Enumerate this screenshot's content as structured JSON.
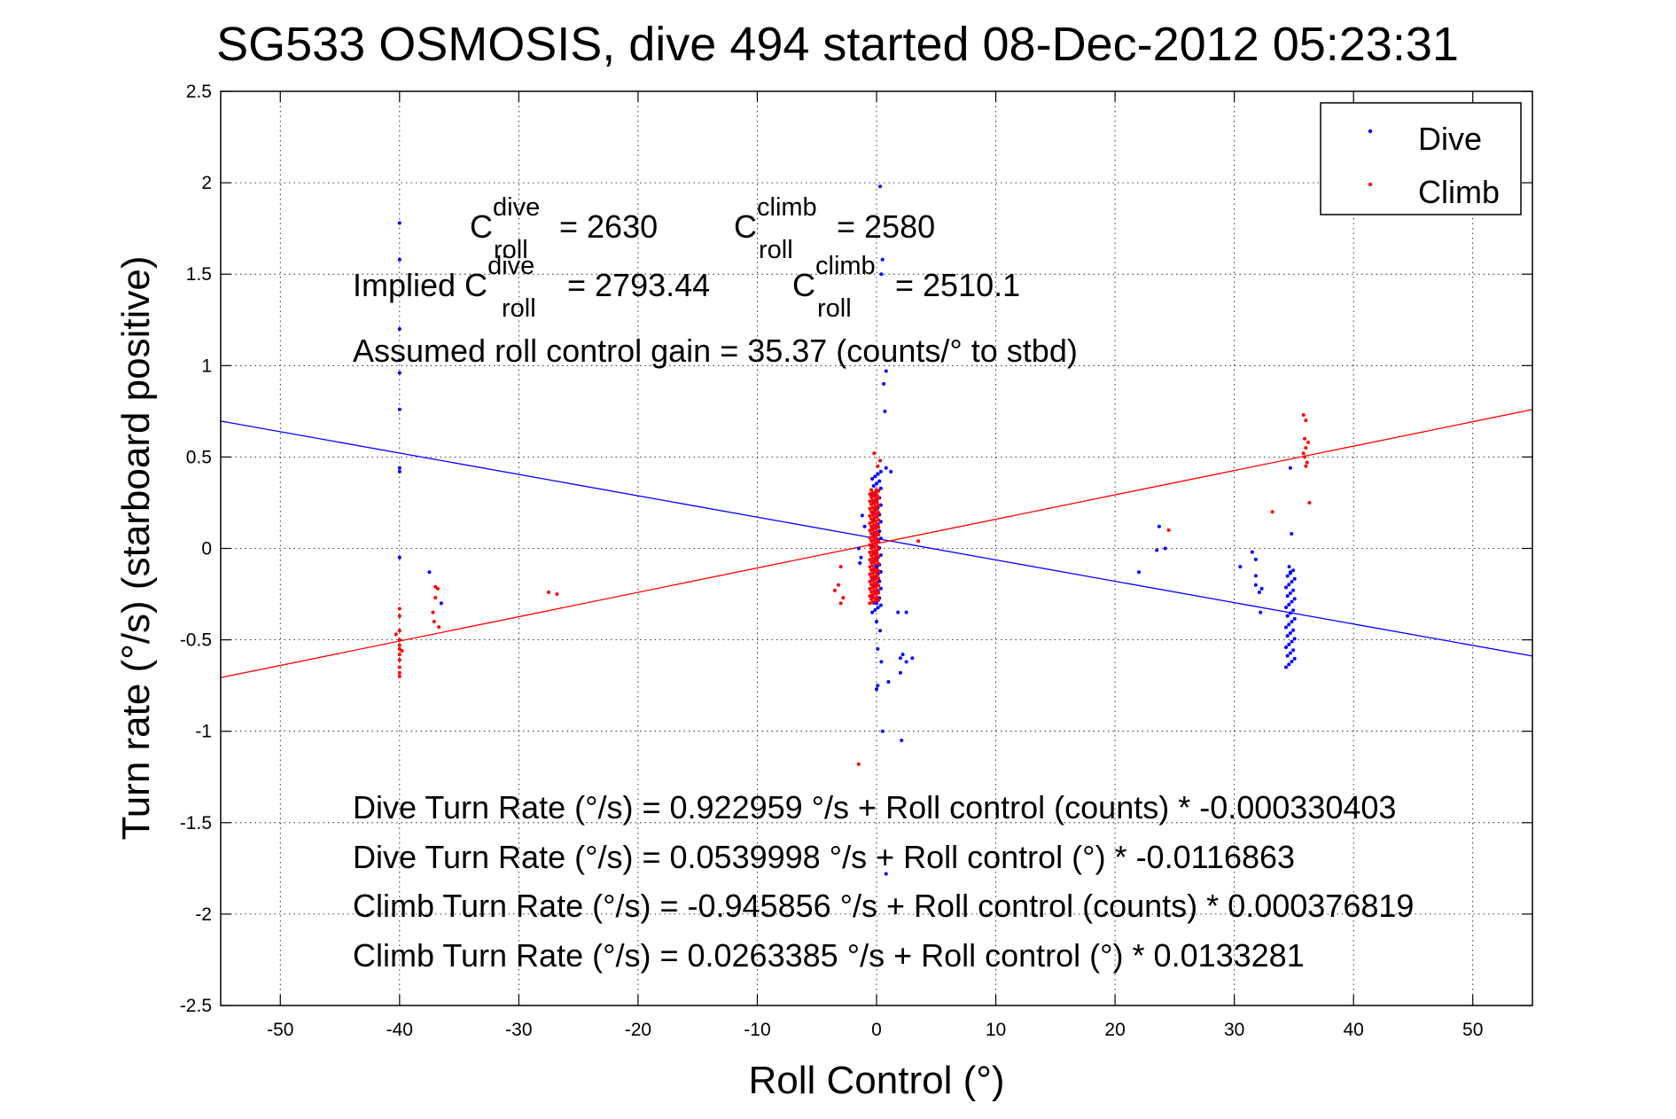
{
  "chart_data": {
    "type": "scatter",
    "title": "SG533 OSMOSIS, dive 494 started 08-Dec-2012 05:23:31",
    "xlabel": "Roll Control (°)",
    "ylabel": "Turn rate (°/s)  (starboard positive)",
    "xlim": [
      -55,
      55
    ],
    "ylim": [
      -2.5,
      2.5
    ],
    "xticks": [
      -50,
      -40,
      -30,
      -20,
      -10,
      0,
      10,
      20,
      30,
      40,
      50
    ],
    "yticks": [
      -2.5,
      -2,
      -1.5,
      -1,
      -0.5,
      0,
      0.5,
      1,
      1.5,
      2,
      2.5
    ],
    "grid": true,
    "legend_position": "top-right",
    "series": [
      {
        "name": "Dive",
        "color": "#0000ff",
        "marker": "dot",
        "points": [
          [
            -40,
            1.78
          ],
          [
            -40,
            1.58
          ],
          [
            -40,
            1.2
          ],
          [
            -40,
            1.03
          ],
          [
            -40,
            0.96
          ],
          [
            -40,
            0.76
          ],
          [
            -40,
            0.44
          ],
          [
            -40,
            0.42
          ],
          [
            -40,
            -0.05
          ],
          [
            -37.5,
            -0.13
          ],
          [
            -36.5,
            -0.3
          ],
          [
            0.3,
            1.98
          ],
          [
            0.5,
            1.58
          ],
          [
            0.4,
            1.5
          ],
          [
            0.8,
            0.97
          ],
          [
            0.6,
            0.9
          ],
          [
            0.7,
            0.75
          ],
          [
            0.8,
            0.44
          ],
          [
            1.2,
            0.42
          ],
          [
            -1.2,
            0.18
          ],
          [
            -1.0,
            0.12
          ],
          [
            -1.5,
            0.0
          ],
          [
            -1.3,
            -0.05
          ],
          [
            -1.4,
            -0.08
          ],
          [
            0,
            -0.1
          ],
          [
            0,
            -0.3
          ],
          [
            0,
            -0.4
          ],
          [
            0.3,
            -0.45
          ],
          [
            0.1,
            -0.55
          ],
          [
            0.4,
            -0.62
          ],
          [
            0.1,
            -0.75
          ],
          [
            0.0,
            -0.77
          ],
          [
            1.0,
            -0.73
          ],
          [
            2.0,
            -0.6
          ],
          [
            2.5,
            -0.62
          ],
          [
            3.0,
            -0.6
          ],
          [
            2.2,
            -0.58
          ],
          [
            2.0,
            -0.68
          ],
          [
            1.8,
            -0.35
          ],
          [
            2.5,
            -0.35
          ],
          [
            0.5,
            -1.0
          ],
          [
            2.1,
            -1.05
          ],
          [
            0.8,
            -1.78
          ],
          [
            22,
            -0.13
          ],
          [
            23.5,
            -0.01
          ],
          [
            23.7,
            0.12
          ],
          [
            24.2,
            0.0
          ],
          [
            30.5,
            -0.1
          ],
          [
            31.5,
            -0.02
          ],
          [
            31.8,
            -0.06
          ],
          [
            31.8,
            -0.2
          ],
          [
            32.1,
            -0.24
          ],
          [
            32.3,
            -0.22
          ],
          [
            32.2,
            -0.35
          ],
          [
            31.8,
            -0.15
          ],
          [
            34.7,
            0.44
          ],
          [
            34.8,
            0.08
          ],
          [
            34.6,
            -0.1
          ],
          [
            34.7,
            -0.13
          ]
        ]
      },
      {
        "name": "Climb",
        "color": "#ff0000",
        "marker": "dot",
        "points": [
          [
            -40,
            -0.33
          ],
          [
            -40,
            -0.37
          ],
          [
            -40,
            -0.45
          ],
          [
            -40,
            -0.5
          ],
          [
            -40,
            -0.53
          ],
          [
            -40,
            -0.55
          ],
          [
            -40,
            -0.58
          ],
          [
            -40,
            -0.61
          ],
          [
            -40,
            -0.65
          ],
          [
            -40,
            -0.68
          ],
          [
            -40,
            -0.7
          ],
          [
            -40.3,
            -0.47
          ],
          [
            -39.8,
            -0.56
          ],
          [
            -37,
            -0.21
          ],
          [
            -37,
            -0.27
          ],
          [
            -36.8,
            -0.22
          ],
          [
            -37.2,
            -0.35
          ],
          [
            -37.1,
            -0.4
          ],
          [
            -36.7,
            -0.43
          ],
          [
            -27.5,
            -0.24
          ],
          [
            -26.8,
            -0.25
          ],
          [
            -3.0,
            -0.1
          ],
          [
            -3.2,
            -0.2
          ],
          [
            -3.5,
            -0.23
          ],
          [
            -2.8,
            -0.27
          ],
          [
            -3.0,
            -0.3
          ],
          [
            -0.2,
            0.52
          ],
          [
            0.1,
            0.45
          ],
          [
            0.3,
            0.48
          ],
          [
            0.0,
            0.32
          ],
          [
            3.5,
            0.04
          ],
          [
            -1.5,
            -1.18
          ],
          [
            24.5,
            0.1
          ],
          [
            33.2,
            0.2
          ],
          [
            35.8,
            0.73
          ],
          [
            36.0,
            0.7
          ],
          [
            35.9,
            0.6
          ],
          [
            36.2,
            0.58
          ],
          [
            36.0,
            0.55
          ],
          [
            35.8,
            0.52
          ],
          [
            35.9,
            0.5
          ],
          [
            36.1,
            0.47
          ],
          [
            36.0,
            0.45
          ],
          [
            36.3,
            0.25
          ]
        ]
      }
    ],
    "vertical_bands": [
      {
        "series": "Dive",
        "x": 0.0,
        "y_from": -0.35,
        "y_to": 0.42,
        "count": 60
      },
      {
        "series": "Climb",
        "x": -0.2,
        "y_from": -0.3,
        "y_to": 0.32,
        "count": 110
      },
      {
        "series": "Dive",
        "x": 34.7,
        "y_from": -0.65,
        "y_to": -0.12,
        "count": 35
      }
    ],
    "fit_lines": [
      {
        "series": "Dive",
        "color": "#0000ff",
        "intercept": 0.0539998,
        "slope": -0.0116863
      },
      {
        "series": "Climb",
        "color": "#ff0000",
        "intercept": 0.0263385,
        "slope": 0.0133281
      }
    ],
    "annotations": {
      "c_dive_base": "C",
      "c_dive_sup": "dive",
      "c_dive_sub": "roll",
      "c_dive_value": "= 2630",
      "c_climb_base": "C",
      "c_climb_sup": "climb",
      "c_climb_sub": "roll",
      "c_climb_value": "= 2580",
      "implied_prefix": "Implied C",
      "implied_dive_sup": "dive",
      "implied_dive_sub": "roll",
      "implied_dive_value": "= 2793.44",
      "implied_climb_base": "C",
      "implied_climb_sup": "climb",
      "implied_climb_sub": "roll",
      "implied_climb_value": "= 2510.1",
      "gain": "Assumed roll control gain = 35.37 (counts/° to stbd)",
      "eq1": "Dive Turn Rate (°/s) = 0.922959 °/s + Roll control (counts) * -0.000330403",
      "eq2": "Dive Turn Rate (°/s) = 0.0539998 °/s + Roll control (°) * -0.0116863",
      "eq3": "Climb Turn Rate (°/s) = -0.945856 °/s + Roll control (counts) * 0.000376819",
      "eq4": "Climb Turn Rate (°/s) = 0.0263385 °/s + Roll control (°) * 0.0133281"
    }
  }
}
